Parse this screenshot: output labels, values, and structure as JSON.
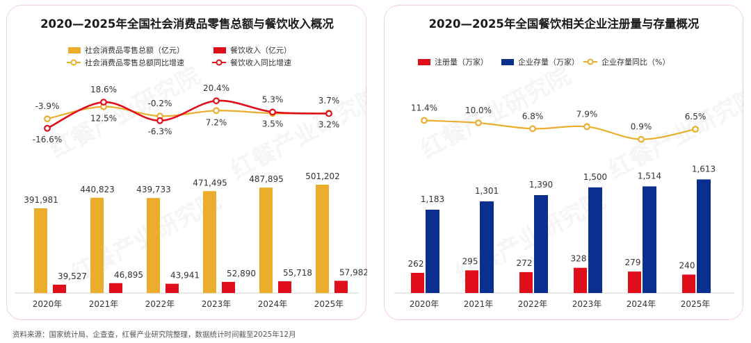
{
  "footer": {
    "source": "资料来源：国家统计局、企查查，红餐产业研究院整理，数据统计时间截至2025年12月"
  },
  "watermark": "红餐产业研究院",
  "colors": {
    "gold": "#ebad2c",
    "red": "#e00d1a",
    "navy": "#0b2f8f",
    "border": "#f6cfd3"
  },
  "chart_data": [
    {
      "type": "bar+line",
      "title": "2020—2025年全国社会消费品零售总额与餐饮收入概况",
      "categories": [
        "2020年",
        "2021年",
        "2022年",
        "2023年",
        "2024年",
        "2025年"
      ],
      "legend": {
        "retail_total": "社会消费品零售总额（亿元）",
        "catering_revenue": "餐饮收入（亿元）",
        "retail_growth": "社会消费品零售总额同比增速",
        "catering_growth": "餐饮收入同比增速"
      },
      "series": [
        {
          "name": "社会消费品零售总额（亿元）",
          "kind": "bar",
          "values": [
            391981,
            440823,
            439733,
            471495,
            487895,
            501202
          ],
          "labels": [
            "391,981",
            "440,823",
            "439,733",
            "471,495",
            "487,895",
            "501,202"
          ]
        },
        {
          "name": "餐饮收入（亿元）",
          "kind": "bar",
          "values": [
            39527,
            46895,
            43941,
            52890,
            55718,
            57982
          ],
          "labels": [
            "39,527",
            "46,895",
            "43,941",
            "52,890",
            "55,718",
            "57,982"
          ]
        },
        {
          "name": "社会消费品零售总额同比增速",
          "kind": "line",
          "values": [
            -3.9,
            12.5,
            -0.2,
            7.2,
            3.5,
            3.7
          ],
          "labels": [
            "-3.9%",
            "12.5%",
            "-0.2%",
            "7.2%",
            "3.5%",
            "3.7%"
          ]
        },
        {
          "name": "餐饮收入同比增速",
          "kind": "line",
          "values": [
            -16.6,
            18.6,
            -6.3,
            20.4,
            5.3,
            3.2
          ],
          "labels": [
            "-16.6%",
            "18.6%",
            "-6.3%",
            "20.4%",
            "5.3%",
            "3.2%"
          ]
        }
      ]
    },
    {
      "type": "bar+line",
      "title": "2020—2025年全国餐饮相关企业注册量与存量概况",
      "categories": [
        "2020年",
        "2021年",
        "2022年",
        "2023年",
        "2024年",
        "2025年"
      ],
      "legend": {
        "registrations": "注册量（万家）",
        "stock": "企业存量（万家）",
        "stock_growth": "企业存量同比（%）"
      },
      "series": [
        {
          "name": "注册量（万家）",
          "kind": "bar",
          "values": [
            262,
            295,
            272,
            328,
            279,
            240
          ],
          "labels": [
            "262",
            "295",
            "272",
            "328",
            "279",
            "240"
          ]
        },
        {
          "name": "企业存量（万家）",
          "kind": "bar",
          "values": [
            1183,
            1301,
            1390,
            1500,
            1514,
            1613
          ],
          "labels": [
            "1,183",
            "1,301",
            "1,390",
            "1,500",
            "1,514",
            "1,613"
          ]
        },
        {
          "name": "企业存量同比（%）",
          "kind": "line",
          "values": [
            11.4,
            10.0,
            6.8,
            7.9,
            0.9,
            6.5
          ],
          "labels": [
            "11.4%",
            "10.0%",
            "6.8%",
            "7.9%",
            "0.9%",
            "6.5%"
          ]
        }
      ]
    }
  ]
}
